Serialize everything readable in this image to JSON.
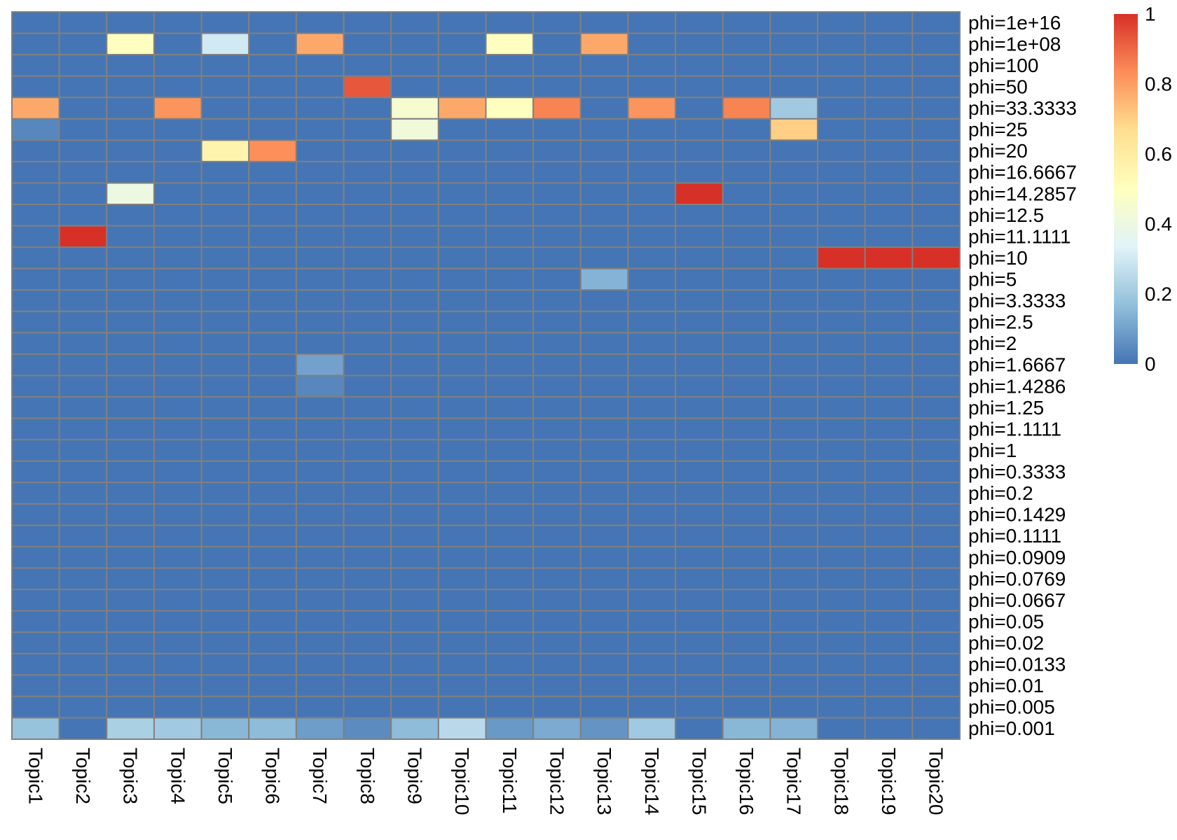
{
  "chart_data": {
    "type": "heatmap",
    "x_categories": [
      "Topic1",
      "Topic2",
      "Topic3",
      "Topic4",
      "Topic5",
      "Topic6",
      "Topic7",
      "Topic8",
      "Topic9",
      "Topic10",
      "Topic11",
      "Topic12",
      "Topic13",
      "Topic14",
      "Topic15",
      "Topic16",
      "Topic17",
      "Topic18",
      "Topic19",
      "Topic20"
    ],
    "y_categories": [
      "phi=1e+16",
      "phi=1e+08",
      "phi=100",
      "phi=50",
      "phi=33.3333",
      "phi=25",
      "phi=20",
      "phi=16.6667",
      "phi=14.2857",
      "phi=12.5",
      "phi=11.1111",
      "phi=10",
      "phi=5",
      "phi=3.3333",
      "phi=2.5",
      "phi=2",
      "phi=1.6667",
      "phi=1.4286",
      "phi=1.25",
      "phi=1.1111",
      "phi=1",
      "phi=0.3333",
      "phi=0.2",
      "phi=0.1429",
      "phi=0.1111",
      "phi=0.0909",
      "phi=0.0769",
      "phi=0.0667",
      "phi=0.05",
      "phi=0.02",
      "phi=0.0133",
      "phi=0.01",
      "phi=0.005",
      "phi=0.001"
    ],
    "values": [
      [
        0,
        0,
        0,
        0,
        0,
        0,
        0,
        0,
        0,
        0,
        0,
        0,
        0,
        0,
        0,
        0,
        0,
        0,
        0,
        0
      ],
      [
        0,
        0,
        0.5,
        0,
        0.3,
        0,
        0.78,
        0,
        0,
        0,
        0.5,
        0,
        0.78,
        0,
        0,
        0,
        0,
        0,
        0,
        0
      ],
      [
        0,
        0,
        0,
        0,
        0,
        0,
        0,
        0,
        0,
        0,
        0,
        0,
        0,
        0,
        0,
        0,
        0,
        0,
        0,
        0
      ],
      [
        0,
        0,
        0,
        0,
        0,
        0,
        0,
        0.93,
        0,
        0,
        0,
        0,
        0,
        0,
        0,
        0,
        0,
        0,
        0,
        0
      ],
      [
        0.78,
        0,
        0,
        0.82,
        0,
        0,
        0,
        0,
        0.45,
        0.78,
        0.5,
        0.85,
        0,
        0.82,
        0,
        0.85,
        0.2,
        0,
        0,
        0
      ],
      [
        0.04,
        0,
        0,
        0,
        0,
        0,
        0,
        0,
        0.42,
        0,
        0,
        0,
        0,
        0,
        0,
        0,
        0.7,
        0,
        0,
        0
      ],
      [
        0,
        0,
        0,
        0,
        0.56,
        0.83,
        0,
        0,
        0,
        0,
        0,
        0,
        0,
        0,
        0,
        0,
        0,
        0,
        0,
        0
      ],
      [
        0,
        0,
        0,
        0,
        0,
        0,
        0,
        0,
        0,
        0,
        0,
        0,
        0,
        0,
        0,
        0,
        0,
        0,
        0,
        0
      ],
      [
        0,
        0,
        0.4,
        0,
        0,
        0,
        0,
        0,
        0,
        0,
        0,
        0,
        0,
        0,
        1,
        0,
        0,
        0,
        0,
        0
      ],
      [
        0,
        0,
        0,
        0,
        0,
        0,
        0,
        0,
        0,
        0,
        0,
        0,
        0,
        0,
        0,
        0,
        0,
        0,
        0,
        0
      ],
      [
        0,
        1,
        0,
        0,
        0,
        0,
        0,
        0,
        0,
        0,
        0,
        0,
        0,
        0,
        0,
        0,
        0,
        0,
        0,
        0
      ],
      [
        0,
        0,
        0,
        0,
        0,
        0,
        0,
        0,
        0,
        0,
        0,
        0,
        0,
        0,
        0,
        0,
        0,
        1,
        1,
        1
      ],
      [
        0,
        0,
        0,
        0,
        0,
        0,
        0,
        0,
        0,
        0,
        0,
        0,
        0.14,
        0,
        0,
        0,
        0,
        0,
        0,
        0
      ],
      [
        0,
        0,
        0,
        0,
        0,
        0,
        0,
        0,
        0,
        0,
        0,
        0,
        0,
        0,
        0,
        0,
        0,
        0,
        0,
        0
      ],
      [
        0,
        0,
        0,
        0,
        0,
        0,
        0,
        0,
        0,
        0,
        0,
        0,
        0,
        0,
        0,
        0,
        0,
        0,
        0,
        0
      ],
      [
        0,
        0,
        0,
        0,
        0,
        0,
        0,
        0,
        0,
        0,
        0,
        0,
        0,
        0,
        0,
        0,
        0,
        0,
        0,
        0
      ],
      [
        0,
        0,
        0,
        0,
        0,
        0,
        0.1,
        0,
        0,
        0,
        0,
        0,
        0,
        0,
        0,
        0,
        0,
        0,
        0,
        0
      ],
      [
        0,
        0,
        0,
        0,
        0,
        0,
        0.04,
        0,
        0,
        0,
        0,
        0,
        0,
        0,
        0,
        0,
        0,
        0,
        0,
        0
      ],
      [
        0,
        0,
        0,
        0,
        0,
        0,
        0,
        0,
        0,
        0,
        0,
        0,
        0,
        0,
        0,
        0,
        0,
        0,
        0,
        0
      ],
      [
        0,
        0,
        0,
        0,
        0,
        0,
        0,
        0,
        0,
        0,
        0,
        0,
        0,
        0,
        0,
        0,
        0,
        0,
        0,
        0
      ],
      [
        0,
        0,
        0,
        0,
        0,
        0,
        0,
        0,
        0,
        0,
        0,
        0,
        0,
        0,
        0,
        0,
        0,
        0,
        0,
        0
      ],
      [
        0,
        0,
        0,
        0,
        0,
        0,
        0,
        0,
        0,
        0,
        0,
        0,
        0,
        0,
        0,
        0,
        0,
        0,
        0,
        0
      ],
      [
        0,
        0,
        0,
        0,
        0,
        0,
        0,
        0,
        0,
        0,
        0,
        0,
        0,
        0,
        0,
        0,
        0,
        0,
        0,
        0
      ],
      [
        0,
        0,
        0,
        0,
        0,
        0,
        0,
        0,
        0,
        0,
        0,
        0,
        0,
        0,
        0,
        0,
        0,
        0,
        0,
        0
      ],
      [
        0,
        0,
        0,
        0,
        0,
        0,
        0,
        0,
        0,
        0,
        0,
        0,
        0,
        0,
        0,
        0,
        0,
        0,
        0,
        0
      ],
      [
        0,
        0,
        0,
        0,
        0,
        0,
        0,
        0,
        0,
        0,
        0,
        0,
        0,
        0,
        0,
        0,
        0,
        0,
        0,
        0
      ],
      [
        0,
        0,
        0,
        0,
        0,
        0,
        0,
        0,
        0,
        0,
        0,
        0,
        0,
        0,
        0,
        0,
        0,
        0,
        0,
        0
      ],
      [
        0,
        0,
        0,
        0,
        0,
        0,
        0,
        0,
        0,
        0,
        0,
        0,
        0,
        0,
        0,
        0,
        0,
        0,
        0,
        0
      ],
      [
        0,
        0,
        0,
        0,
        0,
        0,
        0,
        0,
        0,
        0,
        0,
        0,
        0,
        0,
        0,
        0,
        0,
        0,
        0,
        0
      ],
      [
        0,
        0,
        0,
        0,
        0,
        0,
        0,
        0,
        0,
        0,
        0,
        0,
        0,
        0,
        0,
        0,
        0,
        0,
        0,
        0
      ],
      [
        0,
        0,
        0,
        0,
        0,
        0,
        0,
        0,
        0,
        0,
        0,
        0,
        0,
        0,
        0,
        0,
        0,
        0,
        0,
        0
      ],
      [
        0,
        0,
        0,
        0,
        0,
        0,
        0,
        0,
        0,
        0,
        0,
        0,
        0,
        0,
        0,
        0,
        0,
        0,
        0,
        0
      ],
      [
        0,
        0,
        0,
        0,
        0,
        0,
        0,
        0,
        0,
        0,
        0,
        0,
        0,
        0,
        0,
        0,
        0,
        0,
        0,
        0
      ],
      [
        0.18,
        0,
        0.22,
        0.2,
        0.15,
        0.16,
        0.09,
        0.05,
        0.16,
        0.25,
        0.08,
        0.12,
        0.07,
        0.2,
        0,
        0.15,
        0.14,
        0,
        0,
        0
      ]
    ],
    "value_range": [
      0,
      1
    ],
    "legend": {
      "position": "right",
      "ticks": [
        "0",
        "0.2",
        "0.4",
        "0.6",
        "0.8",
        "1"
      ],
      "tick_values": [
        0,
        0.2,
        0.4,
        0.6,
        0.8,
        1
      ]
    },
    "colorscale": [
      "#4575B4",
      "#91BFDB",
      "#E0F3F8",
      "#FFFFBF",
      "#FEE090",
      "#FC8D59",
      "#D73027"
    ],
    "grid_color": "#808080",
    "title": "",
    "xlabel": "",
    "ylabel": ""
  }
}
